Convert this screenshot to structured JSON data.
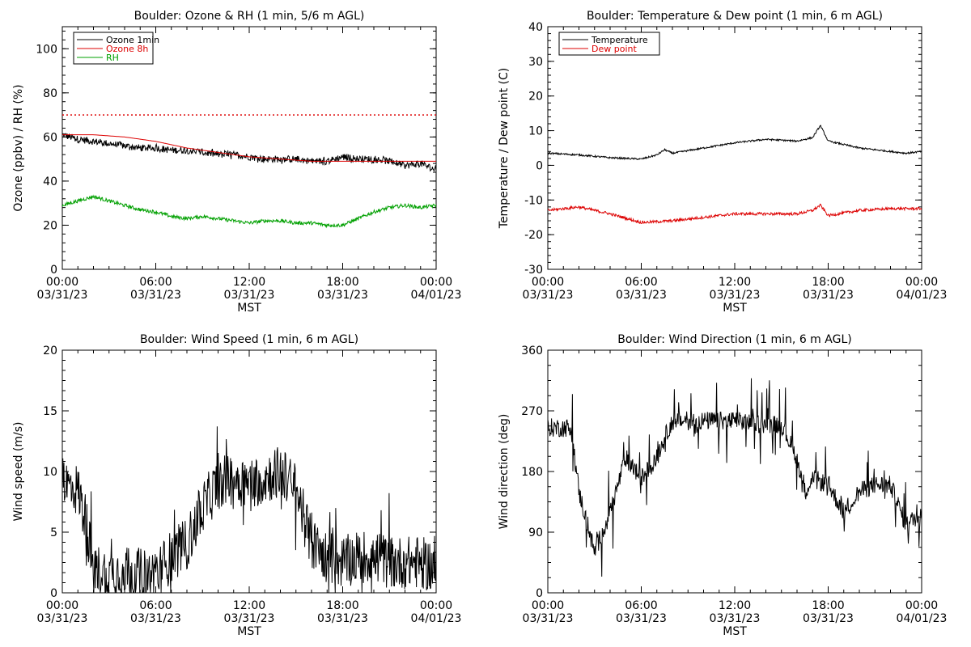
{
  "chart_data": [
    {
      "id": "ozone",
      "type": "line",
      "title": "Boulder: Ozone & RH (1 min, 5/6 m AGL)",
      "xlabel": "MST",
      "ylabel": "Ozone (ppbv) / RH (%)",
      "xlim": [
        0,
        24
      ],
      "ylim": [
        0,
        110
      ],
      "xticks": [
        {
          "time": "00:00",
          "date": "03/31/23"
        },
        {
          "time": "06:00",
          "date": "03/31/23"
        },
        {
          "time": "12:00",
          "date": "03/31/23"
        },
        {
          "time": "18:00",
          "date": "03/31/23"
        },
        {
          "time": "00:00",
          "date": "04/01/23"
        }
      ],
      "yticks": [
        0,
        20,
        40,
        60,
        80,
        100
      ],
      "legend_position": "top-left",
      "reference_line": {
        "y": 70,
        "color": "#dd0000",
        "style": "dotted"
      },
      "series": [
        {
          "name": "Ozone 1min",
          "color": "#000000",
          "noise": 1.6,
          "spikes": 1,
          "x": [
            0,
            1,
            2,
            3,
            4,
            5,
            6,
            7,
            8,
            9,
            10,
            11,
            12,
            13,
            14,
            15,
            16,
            17,
            18,
            19,
            20,
            21,
            22,
            23,
            24
          ],
          "y": [
            61,
            59,
            58,
            57,
            56,
            55,
            55,
            54,
            54,
            53,
            52,
            52,
            51,
            50,
            50,
            50,
            49,
            49,
            51,
            50,
            50,
            49,
            47,
            48,
            45
          ]
        },
        {
          "name": "Ozone 8h",
          "color": "#dd0000",
          "noise": 0,
          "spikes": 0,
          "x": [
            0,
            2,
            4,
            6,
            8,
            10,
            12,
            14,
            16,
            18,
            20,
            22,
            24
          ],
          "y": [
            61,
            61,
            60,
            58,
            55,
            53,
            51,
            50,
            49,
            49,
            49,
            49,
            49
          ]
        },
        {
          "name": "RH",
          "color": "#00a000",
          "noise": 0.8,
          "spikes": 0,
          "x": [
            0,
            1,
            2,
            3,
            4,
            5,
            6,
            7,
            8,
            9,
            10,
            11,
            12,
            13,
            14,
            15,
            16,
            17,
            18,
            19,
            20,
            21,
            22,
            23,
            24
          ],
          "y": [
            29,
            31,
            33,
            31,
            29,
            27,
            26,
            24,
            23,
            24,
            23,
            22,
            21,
            22,
            22,
            21,
            21,
            20,
            20,
            23,
            26,
            28,
            29,
            28,
            29
          ]
        }
      ]
    },
    {
      "id": "temp",
      "type": "line",
      "title": "Boulder: Temperature & Dew point (1 min, 6 m AGL)",
      "xlabel": "MST",
      "ylabel": "Temperature / Dew point (C)",
      "xlim": [
        0,
        24
      ],
      "ylim": [
        -30,
        40
      ],
      "xticks": [
        {
          "time": "00:00",
          "date": "03/31/23"
        },
        {
          "time": "06:00",
          "date": "03/31/23"
        },
        {
          "time": "12:00",
          "date": "03/31/23"
        },
        {
          "time": "18:00",
          "date": "03/31/23"
        },
        {
          "time": "00:00",
          "date": "04/01/23"
        }
      ],
      "yticks": [
        -30,
        -20,
        -10,
        0,
        10,
        20,
        30,
        40
      ],
      "legend_position": "top-left",
      "series": [
        {
          "name": "Temperature",
          "color": "#000000",
          "noise": 0.25,
          "spikes": 0,
          "x": [
            0,
            2,
            4,
            6,
            7,
            7.5,
            8,
            10,
            12,
            14,
            16,
            17,
            17.5,
            18,
            20,
            22,
            23,
            24
          ],
          "y": [
            3.5,
            3,
            2.2,
            1.8,
            3,
            4.5,
            3.5,
            5,
            6.5,
            7.5,
            7,
            8,
            11.5,
            7,
            5,
            4,
            3.5,
            4
          ]
        },
        {
          "name": "Dew point",
          "color": "#dd0000",
          "noise": 0.4,
          "spikes": 0,
          "x": [
            0,
            2,
            4,
            6,
            8,
            10,
            12,
            14,
            16,
            17,
            17.5,
            18,
            20,
            22,
            24
          ],
          "y": [
            -13,
            -12,
            -14,
            -16.5,
            -16,
            -15,
            -14,
            -14,
            -14,
            -13,
            -11.5,
            -14.5,
            -13,
            -12.5,
            -12.5
          ]
        }
      ]
    },
    {
      "id": "wspd",
      "type": "line",
      "title": "Boulder: Wind Speed (1 min, 6 m AGL)",
      "xlabel": "MST",
      "ylabel": "Wind speed (m/s)",
      "xlim": [
        0,
        24
      ],
      "ylim": [
        0,
        20
      ],
      "xticks": [
        {
          "time": "00:00",
          "date": "03/31/23"
        },
        {
          "time": "06:00",
          "date": "03/31/23"
        },
        {
          "time": "12:00",
          "date": "03/31/23"
        },
        {
          "time": "18:00",
          "date": "03/31/23"
        },
        {
          "time": "00:00",
          "date": "04/01/23"
        }
      ],
      "yticks": [
        0,
        5,
        10,
        15,
        20
      ],
      "legend_position": "none",
      "series": [
        {
          "name": "",
          "color": "#000000",
          "noise": 2.2,
          "spikes": 4,
          "x": [
            0,
            1,
            1.5,
            2,
            3,
            4,
            5,
            6,
            7,
            8,
            9,
            10,
            11,
            12,
            13,
            14,
            15,
            16,
            17,
            18,
            19,
            20,
            21,
            22,
            23,
            24
          ],
          "y": [
            9,
            8.5,
            6,
            2,
            1.5,
            2,
            1.5,
            1.5,
            3,
            4,
            7,
            9,
            9.5,
            9,
            9.5,
            10,
            8.5,
            4,
            3,
            2.5,
            3,
            3,
            2.5,
            2.5,
            2.5,
            2
          ]
        }
      ]
    },
    {
      "id": "wdir",
      "type": "line",
      "title": "Boulder: Wind Direction (1 min, 6 m AGL)",
      "xlabel": "MST",
      "ylabel": "Wind direction (deg)",
      "xlim": [
        0,
        24
      ],
      "ylim": [
        0,
        360
      ],
      "xticks": [
        {
          "time": "00:00",
          "date": "03/31/23"
        },
        {
          "time": "06:00",
          "date": "03/31/23"
        },
        {
          "time": "12:00",
          "date": "03/31/23"
        },
        {
          "time": "18:00",
          "date": "03/31/23"
        },
        {
          "time": "00:00",
          "date": "04/01/23"
        }
      ],
      "yticks": [
        0,
        90,
        180,
        270,
        360
      ],
      "legend_position": "none",
      "series": [
        {
          "name": "",
          "color": "#000000",
          "noise": 14,
          "spikes": 60,
          "x": [
            0,
            1.5,
            2,
            3,
            4,
            5,
            6,
            7,
            7.5,
            8,
            9,
            10,
            12,
            14,
            15,
            16,
            16.5,
            17,
            18,
            19,
            20,
            21,
            22,
            23,
            24
          ],
          "y": [
            245,
            245,
            150,
            60,
            120,
            200,
            170,
            200,
            230,
            255,
            255,
            255,
            255,
            250,
            250,
            200,
            150,
            170,
            160,
            120,
            150,
            160,
            160,
            100,
            120
          ]
        }
      ]
    }
  ]
}
